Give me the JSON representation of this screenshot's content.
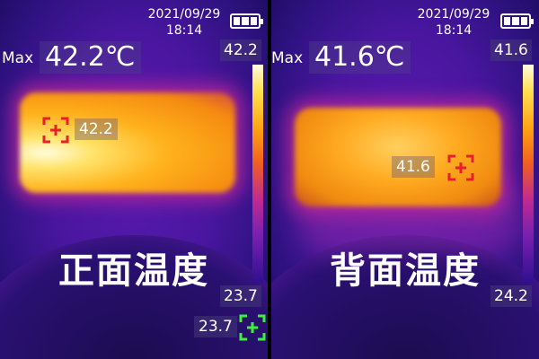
{
  "panels": [
    {
      "date": "2021/09/29",
      "time": "18:14",
      "max_label": "Max",
      "max_value": "42.2℃",
      "scale_max": "42.2",
      "scale_min": "23.7",
      "spot_value": "42.2",
      "center_value": "23.7",
      "caption": "正面温度",
      "spot_icon": "crosshair-hot-red",
      "center_icon": "crosshair-center-green"
    },
    {
      "date": "2021/09/29",
      "time": "18:14",
      "max_label": "Max",
      "max_value": "41.6℃",
      "scale_max": "41.6",
      "scale_min": "24.2",
      "spot_value": "41.6",
      "caption": "背面温度",
      "spot_icon": "crosshair-hot-red"
    }
  ],
  "colors": {
    "hot_marker": "#e8202a",
    "center_marker": "#3cf03c"
  }
}
